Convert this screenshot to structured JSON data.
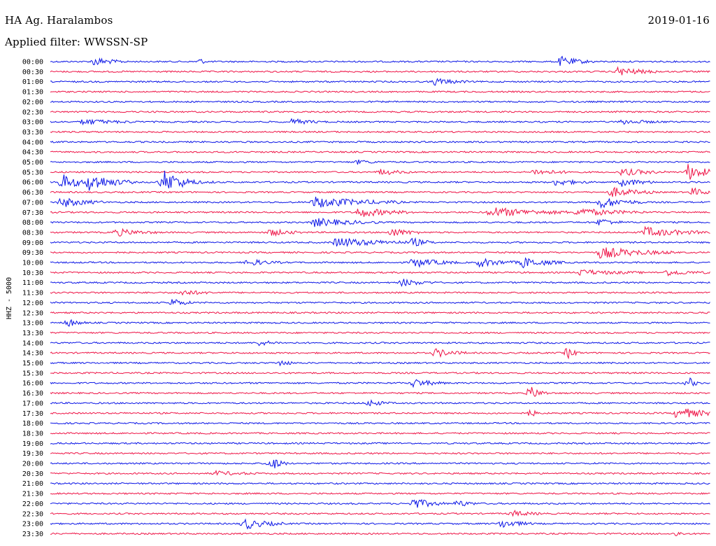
{
  "header": {
    "station": "HA Ag. Haralambos",
    "date": "2019-01-16",
    "filter": "Applied filter: WWSSN-SP"
  },
  "colors": {
    "series_a": "#0a14e6",
    "series_b": "#ee1346"
  },
  "chart_data": {
    "type": "line",
    "title": "HA Ag. Haralambos",
    "ylabel": "HHZ - 5000",
    "row_labels": [
      "00:00",
      "00:30",
      "01:00",
      "01:30",
      "02:00",
      "02:30",
      "03:00",
      "03:30",
      "04:00",
      "04:30",
      "05:00",
      "05:30",
      "06:00",
      "06:30",
      "07:00",
      "07:30",
      "08:00",
      "08:30",
      "09:00",
      "09:30",
      "10:00",
      "10:30",
      "11:00",
      "11:30",
      "12:00",
      "12:30",
      "13:00",
      "13:30",
      "14:00",
      "14:30",
      "15:00",
      "15:30",
      "16:00",
      "16:30",
      "17:00",
      "17:30",
      "18:00",
      "18:30",
      "19:00",
      "19:30",
      "20:00",
      "20:30",
      "21:00",
      "21:30",
      "22:00",
      "22:30",
      "23:00",
      "23:30"
    ],
    "row_colors": [
      "a",
      "b"
    ],
    "x_range_minutes": [
      0,
      30
    ],
    "grid": false,
    "events": [
      {
        "row": 0,
        "t": 2.0,
        "amp": 6,
        "dur": 1.5
      },
      {
        "row": 0,
        "t": 6.8,
        "amp": 5,
        "dur": 0.3
      },
      {
        "row": 0,
        "t": 23.2,
        "amp": 7,
        "dur": 1.5
      },
      {
        "row": 1,
        "t": 25.8,
        "amp": 6,
        "dur": 2.0
      },
      {
        "row": 2,
        "t": 17.5,
        "amp": 5,
        "dur": 1.5
      },
      {
        "row": 6,
        "t": 1.5,
        "amp": 4,
        "dur": 2.5
      },
      {
        "row": 6,
        "t": 11.0,
        "amp": 4,
        "dur": 1.5
      },
      {
        "row": 6,
        "t": 26.0,
        "amp": 3,
        "dur": 2.0
      },
      {
        "row": 10,
        "t": 14.0,
        "amp": 3,
        "dur": 1.0
      },
      {
        "row": 11,
        "t": 15.0,
        "amp": 4,
        "dur": 1.5
      },
      {
        "row": 11,
        "t": 22.0,
        "amp": 4,
        "dur": 2.0
      },
      {
        "row": 11,
        "t": 26.0,
        "amp": 5,
        "dur": 2.0
      },
      {
        "row": 11,
        "t": 29.0,
        "amp": 12,
        "dur": 1.5
      },
      {
        "row": 12,
        "t": 0.5,
        "amp": 12,
        "dur": 1.5
      },
      {
        "row": 12,
        "t": 1.8,
        "amp": 13,
        "dur": 2.0
      },
      {
        "row": 12,
        "t": 5.0,
        "amp": 5,
        "dur": 2.5
      },
      {
        "row": 12,
        "t": 5.2,
        "amp": 12,
        "dur": 1.5
      },
      {
        "row": 12,
        "t": 23.0,
        "amp": 5,
        "dur": 1.5
      },
      {
        "row": 12,
        "t": 26.0,
        "amp": 6,
        "dur": 1.5
      },
      {
        "row": 13,
        "t": 25.5,
        "amp": 7,
        "dur": 2.0
      },
      {
        "row": 13,
        "t": 29.2,
        "amp": 6,
        "dur": 1.0
      },
      {
        "row": 14,
        "t": 0.5,
        "amp": 7,
        "dur": 2.0
      },
      {
        "row": 14,
        "t": 12.0,
        "amp": 8,
        "dur": 4.0
      },
      {
        "row": 14,
        "t": 25.0,
        "amp": 8,
        "dur": 2.0
      },
      {
        "row": 15,
        "t": 14.0,
        "amp": 7,
        "dur": 2.5
      },
      {
        "row": 15,
        "t": 20.0,
        "amp": 7,
        "dur": 4.0
      },
      {
        "row": 15,
        "t": 24.0,
        "amp": 6,
        "dur": 3.0
      },
      {
        "row": 16,
        "t": 12.0,
        "amp": 6,
        "dur": 3.0
      },
      {
        "row": 16,
        "t": 25.0,
        "amp": 6,
        "dur": 1.0
      },
      {
        "row": 17,
        "t": 3.0,
        "amp": 5,
        "dur": 2.0
      },
      {
        "row": 17,
        "t": 10.0,
        "amp": 5,
        "dur": 1.5
      },
      {
        "row": 17,
        "t": 15.5,
        "amp": 6,
        "dur": 1.5
      },
      {
        "row": 17,
        "t": 27.0,
        "amp": 7,
        "dur": 3.0
      },
      {
        "row": 18,
        "t": 13.0,
        "amp": 7,
        "dur": 3.5
      },
      {
        "row": 18,
        "t": 16.5,
        "amp": 6,
        "dur": 1.0
      },
      {
        "row": 19,
        "t": 25.0,
        "amp": 8,
        "dur": 3.5
      },
      {
        "row": 20,
        "t": 9.0,
        "amp": 5,
        "dur": 1.5
      },
      {
        "row": 20,
        "t": 16.5,
        "amp": 7,
        "dur": 2.0
      },
      {
        "row": 20,
        "t": 19.5,
        "amp": 6,
        "dur": 2.0
      },
      {
        "row": 20,
        "t": 21.5,
        "amp": 7,
        "dur": 2.0
      },
      {
        "row": 21,
        "t": 24.0,
        "amp": 4,
        "dur": 3.0
      },
      {
        "row": 21,
        "t": 28.0,
        "amp": 4,
        "dur": 2.0
      },
      {
        "row": 22,
        "t": 16.0,
        "amp": 5,
        "dur": 1.5
      },
      {
        "row": 23,
        "t": 6.0,
        "amp": 4,
        "dur": 1.5
      },
      {
        "row": 24,
        "t": 5.5,
        "amp": 6,
        "dur": 1.0
      },
      {
        "row": 26,
        "t": 0.8,
        "amp": 6,
        "dur": 0.8
      },
      {
        "row": 28,
        "t": 9.5,
        "amp": 4,
        "dur": 1.0
      },
      {
        "row": 29,
        "t": 17.5,
        "amp": 6,
        "dur": 1.5
      },
      {
        "row": 29,
        "t": 23.5,
        "amp": 8,
        "dur": 0.6
      },
      {
        "row": 30,
        "t": 10.5,
        "amp": 5,
        "dur": 0.6
      },
      {
        "row": 32,
        "t": 16.5,
        "amp": 6,
        "dur": 1.5
      },
      {
        "row": 32,
        "t": 29.0,
        "amp": 9,
        "dur": 0.5
      },
      {
        "row": 33,
        "t": 21.8,
        "amp": 10,
        "dur": 0.8
      },
      {
        "row": 34,
        "t": 14.5,
        "amp": 5,
        "dur": 1.0
      },
      {
        "row": 35,
        "t": 21.8,
        "amp": 5,
        "dur": 0.6
      },
      {
        "row": 35,
        "t": 28.5,
        "amp": 9,
        "dur": 2.0
      },
      {
        "row": 40,
        "t": 10.0,
        "amp": 11,
        "dur": 0.8
      },
      {
        "row": 41,
        "t": 7.5,
        "amp": 3,
        "dur": 2.0
      },
      {
        "row": 44,
        "t": 16.5,
        "amp": 8,
        "dur": 1.5
      },
      {
        "row": 44,
        "t": 18.5,
        "amp": 5,
        "dur": 1.0
      },
      {
        "row": 45,
        "t": 21.0,
        "amp": 4,
        "dur": 1.5
      },
      {
        "row": 46,
        "t": 8.8,
        "amp": 8,
        "dur": 1.8
      },
      {
        "row": 46,
        "t": 20.5,
        "amp": 6,
        "dur": 1.5
      },
      {
        "row": 47,
        "t": 28.5,
        "amp": 5,
        "dur": 0.3
      }
    ]
  }
}
